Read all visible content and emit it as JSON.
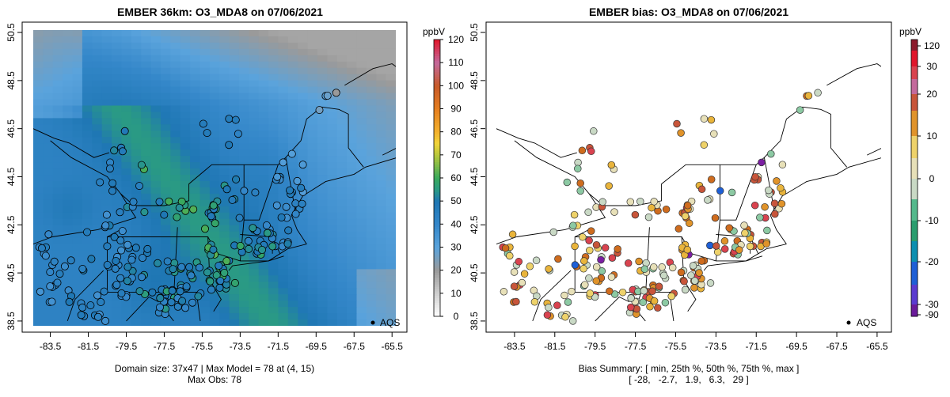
{
  "chart_data": [
    {
      "type": "heatmap",
      "title": "EMBER 36km: O3_MDA8 on 07/06/2021",
      "xlim": [
        -84.4,
        -65.3
      ],
      "ylim": [
        38.3,
        50.6
      ],
      "x_ticks": [
        "-83.5",
        "-81.5",
        "-79.5",
        "-77.5",
        "-75.5",
        "-73.5",
        "-71.5",
        "-69.5",
        "-67.5",
        "-65.5"
      ],
      "y_ticks": [
        "38.5",
        "40.5",
        "42.5",
        "44.5",
        "46.5",
        "48.5",
        "50.5"
      ],
      "legend_label": "AQS",
      "colorbar": {
        "unit": "ppbV",
        "min": 0,
        "max": 120,
        "ticks": [
          "0",
          "10",
          "20",
          "30",
          "40",
          "50",
          "60",
          "70",
          "80",
          "90",
          "100",
          "110",
          "120"
        ],
        "stops": [
          {
            "v": 0,
            "c": "#ffffff"
          },
          {
            "v": 10,
            "c": "#cfcfcf"
          },
          {
            "v": 20,
            "c": "#9a9a9a"
          },
          {
            "v": 30,
            "c": "#5aa3dc"
          },
          {
            "v": 40,
            "c": "#3487c9"
          },
          {
            "v": 50,
            "c": "#1f77b4"
          },
          {
            "v": 55,
            "c": "#2a9a84"
          },
          {
            "v": 60,
            "c": "#3aaa5c"
          },
          {
            "v": 70,
            "c": "#b8c83c"
          },
          {
            "v": 75,
            "c": "#f1d43a"
          },
          {
            "v": 80,
            "c": "#f3b22e"
          },
          {
            "v": 90,
            "c": "#e67e1f"
          },
          {
            "v": 100,
            "c": "#c75a2a"
          },
          {
            "v": 110,
            "c": "#c46a9c"
          },
          {
            "v": 120,
            "c": "#e0162b"
          }
        ]
      },
      "caption": [
        "Domain size: 37x47 | Max Model = 78 at (4, 15)",
        "Max Obs: 78"
      ]
    },
    {
      "type": "scatter",
      "title": "EMBER bias: O3_MDA8 on 07/06/2021",
      "xlim": [
        -84.4,
        -65.3
      ],
      "ylim": [
        38.3,
        50.6
      ],
      "x_ticks": [
        "-83.5",
        "-81.5",
        "-79.5",
        "-77.5",
        "-75.5",
        "-73.5",
        "-71.5",
        "-69.5",
        "-67.5",
        "-65.5"
      ],
      "y_ticks": [
        "38.5",
        "40.5",
        "42.5",
        "44.5",
        "46.5",
        "48.5",
        "50.5"
      ],
      "legend_label": "AQS",
      "colorbar": {
        "unit": "ppbV",
        "ticks": [
          "-90",
          "-30",
          "-20",
          "-10",
          "0",
          "10",
          "20",
          "30",
          "120"
        ]
      },
      "bias_summary": {
        "min": -28,
        "p25": -2.7,
        "p50": 1.9,
        "p75": 6.3,
        "max": 29
      },
      "caption": [
        "Bias Summary: [ min, 25th %, 50th %, 75th %, max ]",
        "[ -28,   -2.7,   1.9,   6.3,   29 ]"
      ]
    }
  ]
}
